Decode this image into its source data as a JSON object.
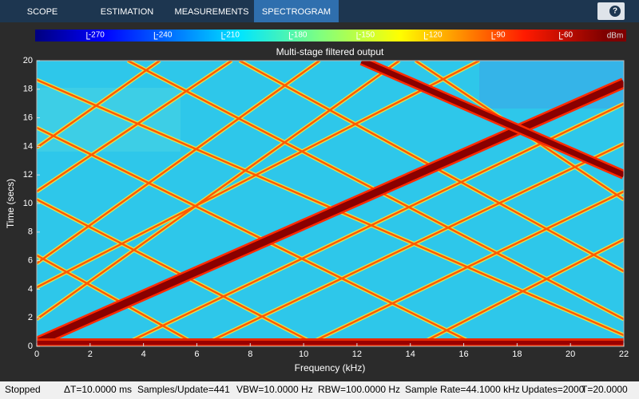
{
  "toolbar": {
    "tabs": [
      "SCOPE",
      "ESTIMATION",
      "MEASUREMENTS",
      "SPECTROGRAM"
    ],
    "selected_tab": 3,
    "help": "?"
  },
  "colorbar": {
    "clim": [
      -293,
      -40
    ],
    "ticks": [
      -270,
      -240,
      -210,
      -180,
      -150,
      -120,
      -90,
      -60
    ],
    "unit": "dBm"
  },
  "plot": {
    "title": "Multi-stage filtered output",
    "xlabel": "Frequency (kHz)",
    "ylabel": "Time (secs)",
    "xlim": [
      0,
      22
    ],
    "ylim": [
      0,
      20
    ],
    "xticks": [
      0,
      2,
      4,
      6,
      8,
      10,
      12,
      14,
      16,
      18,
      20,
      22
    ],
    "yticks": [
      0,
      2,
      4,
      6,
      8,
      10,
      12,
      14,
      16,
      18,
      20
    ]
  },
  "status": {
    "state": "Stopped",
    "items": [
      "ΔT=10.0000 ms",
      "Samples/Update=441",
      "VBW=10.0000 Hz",
      "RBW=100.0000 Hz",
      "Sample Rate=44.1000 kHz",
      "Updates=2000",
      "T=20.0000"
    ]
  }
}
